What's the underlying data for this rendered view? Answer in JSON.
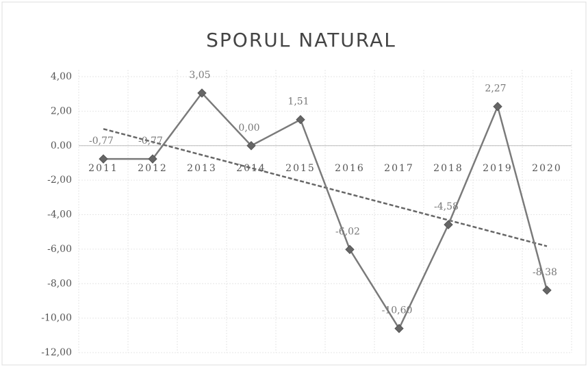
{
  "chart_data": {
    "type": "line",
    "title": "SPORUL NATURAL",
    "categories": [
      "2011",
      "2012",
      "2013",
      "2014",
      "2015",
      "2016",
      "2017",
      "2018",
      "2019",
      "2020"
    ],
    "series": [
      {
        "color": "#7a7a7a",
        "values": [
          -0.77,
          -0.77,
          3.05,
          0.0,
          1.51,
          -6.02,
          -10.6,
          -4.58,
          2.27,
          -8.38
        ],
        "value_labels": [
          "-0,77",
          "-0,77",
          "3,05",
          "0,00",
          "1,51",
          "-6,02",
          "-10,60",
          "-4,58",
          "2,27",
          "-8,38"
        ]
      }
    ],
    "trendline": "linear",
    "trendline_color": "#666666",
    "ylim": [
      -12,
      4
    ],
    "yticks": [
      {
        "value": -12,
        "label": "-12,00"
      },
      {
        "value": -10,
        "label": "-10,00"
      },
      {
        "value": -8,
        "label": "-8,00"
      },
      {
        "value": -6,
        "label": "-6,00"
      },
      {
        "value": -4,
        "label": "-4,00"
      },
      {
        "value": -2,
        "label": "-2,00"
      },
      {
        "value": 0,
        "label": "0.00"
      },
      {
        "value": 2,
        "label": "2,00"
      },
      {
        "value": 4,
        "label": "4,00"
      }
    ],
    "grid": true
  }
}
